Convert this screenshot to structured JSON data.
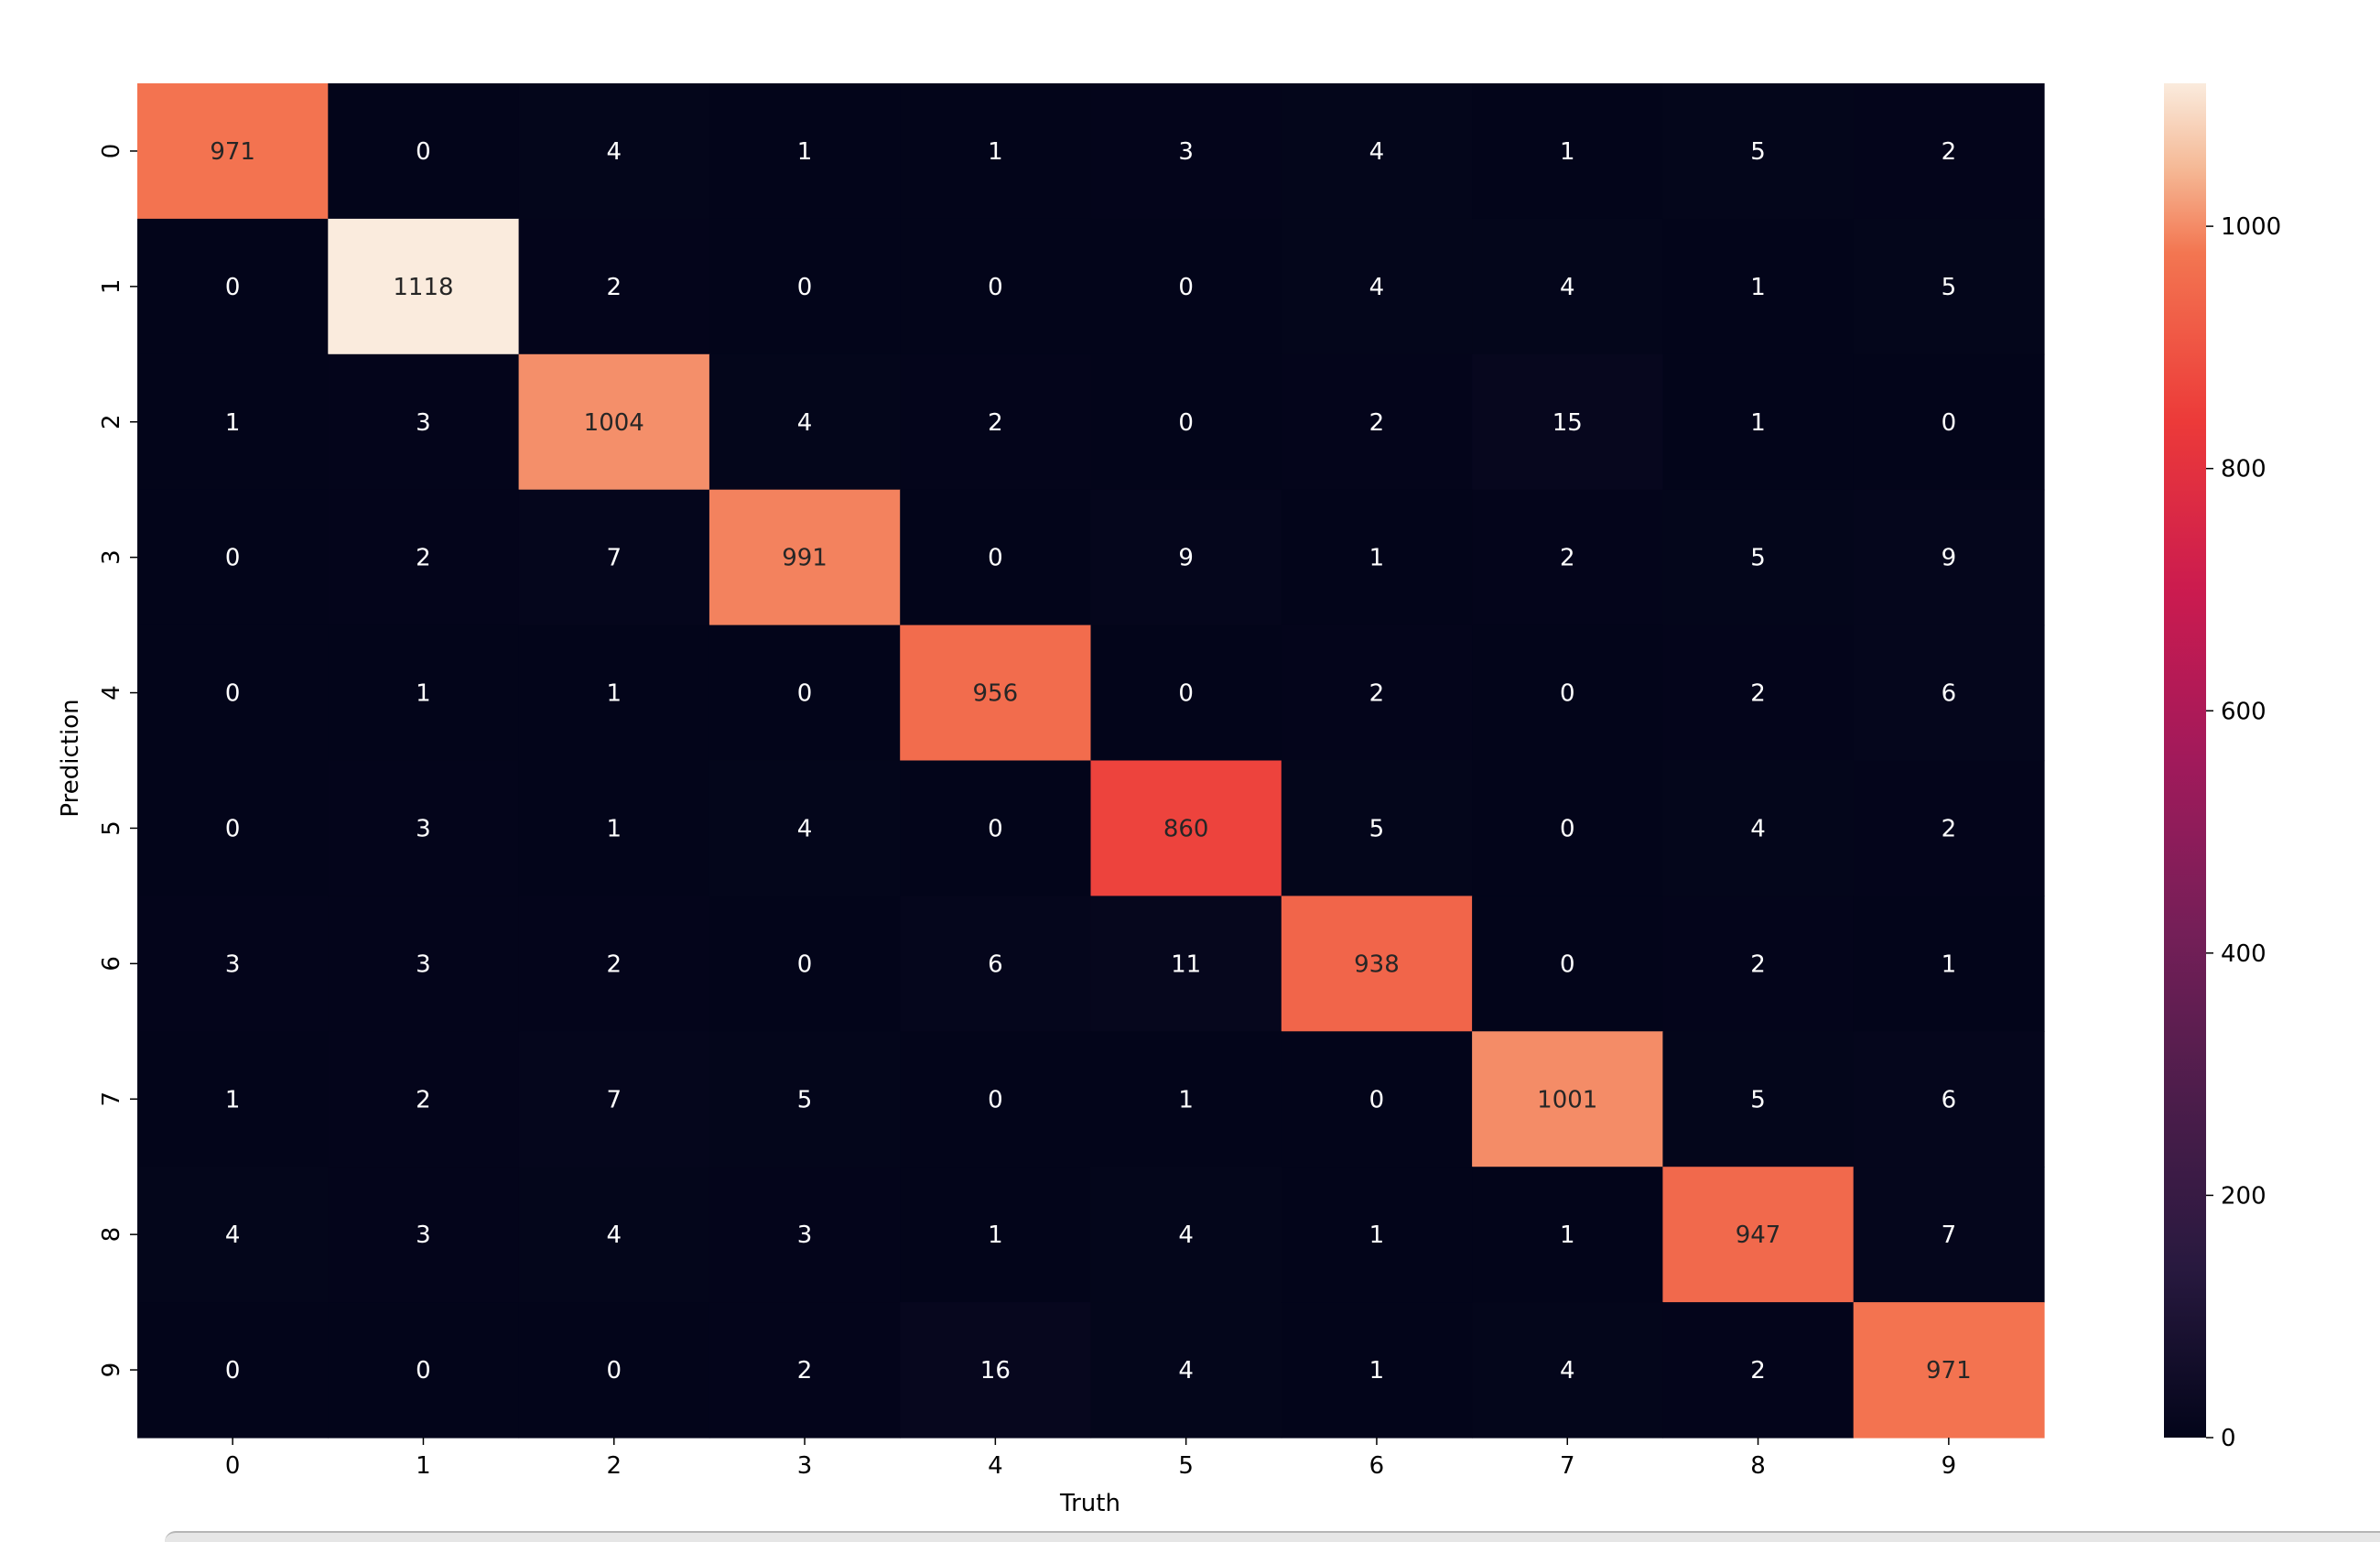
{
  "chart_data": {
    "type": "heatmap",
    "title": "",
    "xlabel": "Truth",
    "ylabel": "Prediction",
    "x_categories": [
      "0",
      "1",
      "2",
      "3",
      "4",
      "5",
      "6",
      "7",
      "8",
      "9"
    ],
    "y_categories": [
      "0",
      "1",
      "2",
      "3",
      "4",
      "5",
      "6",
      "7",
      "8",
      "9"
    ],
    "values": [
      [
        971,
        0,
        4,
        1,
        1,
        3,
        4,
        1,
        5,
        2
      ],
      [
        0,
        1118,
        2,
        0,
        0,
        0,
        4,
        4,
        1,
        5
      ],
      [
        1,
        3,
        1004,
        4,
        2,
        0,
        2,
        15,
        1,
        0
      ],
      [
        0,
        2,
        7,
        991,
        0,
        9,
        1,
        2,
        5,
        9
      ],
      [
        0,
        1,
        1,
        0,
        956,
        0,
        2,
        0,
        2,
        6
      ],
      [
        0,
        3,
        1,
        4,
        0,
        860,
        5,
        0,
        4,
        2
      ],
      [
        3,
        3,
        2,
        0,
        6,
        11,
        938,
        0,
        2,
        1
      ],
      [
        1,
        2,
        7,
        5,
        0,
        1,
        0,
        1001,
        5,
        6
      ],
      [
        4,
        3,
        4,
        3,
        1,
        4,
        1,
        1,
        947,
        7
      ],
      [
        0,
        0,
        0,
        2,
        16,
        4,
        1,
        4,
        2,
        971
      ]
    ],
    "colormap": "rocket",
    "colorbar": {
      "min": 0,
      "max": 1118,
      "ticks": [
        0,
        200,
        400,
        600,
        800,
        1000
      ],
      "tick_labels": [
        "0",
        "200",
        "400",
        "600",
        "800",
        "1000"
      ]
    },
    "grid": false,
    "legend": "colorbar-right"
  }
}
